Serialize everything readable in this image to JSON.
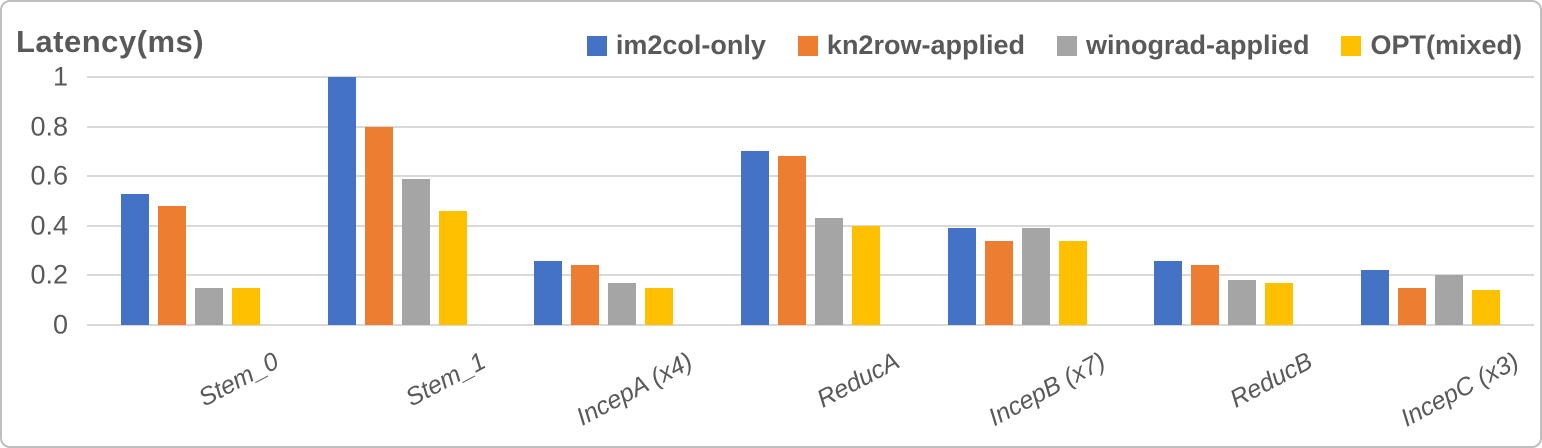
{
  "chart_data": {
    "type": "bar",
    "title": "Latency(ms)",
    "xlabel": "",
    "ylabel": "Latency(ms)",
    "categories": [
      "Stem_0",
      "Stem_1",
      "IncepA (x4)",
      "ReducA",
      "IncepB (x7)",
      "ReducB",
      "IncepC (x3)"
    ],
    "series": [
      {
        "name": "im2col-only",
        "color": "#4472C4",
        "values": [
          0.53,
          1.0,
          0.26,
          0.7,
          0.39,
          0.26,
          0.22
        ]
      },
      {
        "name": "kn2row-applied",
        "color": "#ED7D31",
        "values": [
          0.48,
          0.8,
          0.24,
          0.68,
          0.34,
          0.24,
          0.15
        ]
      },
      {
        "name": "winograd-applied",
        "color": "#A5A5A5",
        "values": [
          0.15,
          0.59,
          0.17,
          0.43,
          0.39,
          0.18,
          0.2
        ]
      },
      {
        "name": "OPT(mixed)",
        "color": "#FFC000",
        "values": [
          0.15,
          0.46,
          0.15,
          0.4,
          0.34,
          0.17,
          0.14
        ]
      }
    ],
    "ylim": [
      0,
      1
    ],
    "ytick_labels": [
      "1",
      "0.8",
      "0.6",
      "0.4",
      "0.2",
      "0"
    ],
    "ytick_values": [
      1,
      0.8,
      0.6,
      0.4,
      0.2,
      0
    ],
    "grid": "horizontal",
    "legend_position": "top"
  },
  "colors": {
    "text": "#595959",
    "gridline": "#D9D9D9",
    "border": "#BFBFBF",
    "background": "#FFFFFF"
  }
}
